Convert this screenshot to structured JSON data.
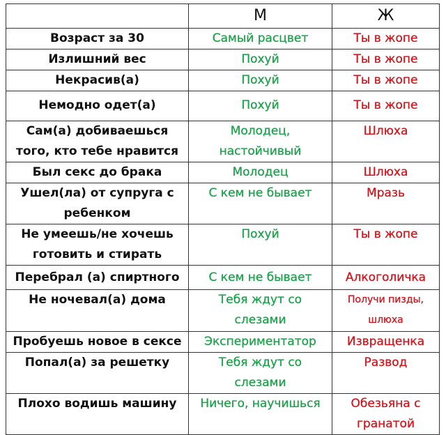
{
  "table": {
    "header": [
      "М",
      "Ж"
    ],
    "rows": [
      [
        "Возраст за 30",
        "Самый расцвет",
        "Ты в жопе"
      ],
      [
        "Излишний вес",
        "Похуй",
        "Ты в жопе"
      ],
      [
        "Некрасив(а)",
        "Похуй",
        "Ты в жопе"
      ],
      [
        "Немодно одет(а)",
        "Похуй",
        "Ты в жопе"
      ],
      [
        "Сам(а) добиваешься того, кто тебе нравится",
        "Молодец, настойчивый",
        "Шлюха"
      ],
      [
        "Был секс до брака",
        "Молодец",
        "Шлюха"
      ],
      [
        "Ушел(ла)  от супруга с ребенком",
        "С кем не бывает",
        "Мразь"
      ],
      [
        "Не умеешь/не хочешь готовить и стирать",
        "Похуй",
        "Ты в жопе"
      ],
      [
        "Перебрал (а) спиртного",
        "С кем не бывает",
        "Алкоголичка"
      ],
      [
        "Не ночевал(а) дома",
        "Тебя ждут со слезами",
        "Получи пизды, шлюха"
      ],
      [
        "Пробуешь новое в сексе",
        "Экспериментатор",
        "Извращенка"
      ],
      [
        "Попал(а) за решетку",
        "Тебя ждут со слезами",
        "Развод"
      ],
      [
        "Плохо водишь машину",
        "Ничего, научишься",
        "Обезьяна с гранатой"
      ]
    ]
  }
}
